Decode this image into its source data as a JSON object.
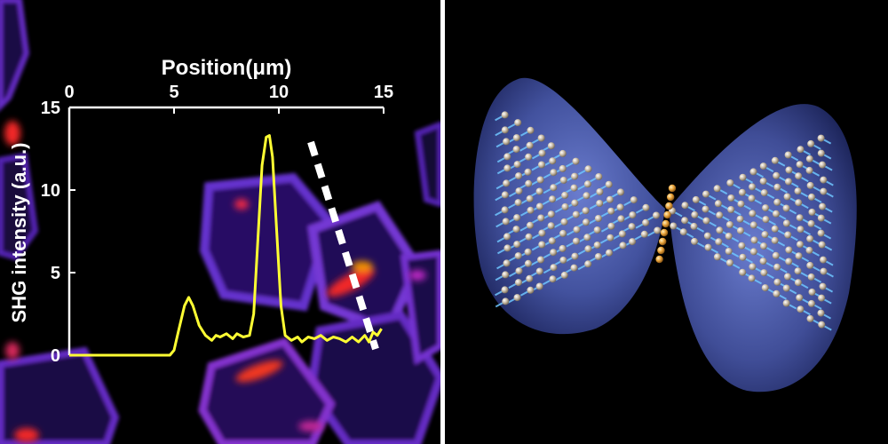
{
  "chart_data": {
    "type": "line",
    "title": "",
    "xlabel": "Position(μm)",
    "ylabel": "SHG intensity (a.u.)",
    "xlim": [
      0,
      15
    ],
    "ylim": [
      0,
      15
    ],
    "x_ticks": [
      0,
      5,
      10,
      15
    ],
    "y_ticks": [
      0,
      5,
      10,
      15
    ],
    "x_axis_position": "top",
    "grid": false,
    "series": [
      {
        "color": "#ffff33",
        "x": [
          0,
          4.8,
          5.0,
          5.2,
          5.5,
          5.7,
          5.9,
          6.2,
          6.5,
          6.8,
          7.0,
          7.2,
          7.5,
          7.8,
          8.0,
          8.3,
          8.6,
          8.8,
          9.0,
          9.2,
          9.4,
          9.55,
          9.7,
          9.9,
          10.1,
          10.3,
          10.6,
          10.9,
          11.1,
          11.4,
          11.7,
          12.0,
          12.3,
          12.6,
          12.9,
          13.2,
          13.5,
          13.8,
          14.1,
          14.3,
          14.5,
          14.7,
          14.9
        ],
        "y": [
          0,
          0,
          0.3,
          1.4,
          3.0,
          3.5,
          3.0,
          1.8,
          1.2,
          0.9,
          1.2,
          1.1,
          1.3,
          1.0,
          1.3,
          1.1,
          1.2,
          2.5,
          7.0,
          11.5,
          13.2,
          13.3,
          12.0,
          7.5,
          3.0,
          1.2,
          0.9,
          1.1,
          0.8,
          1.1,
          1.0,
          1.2,
          0.9,
          1.1,
          1.0,
          0.8,
          1.1,
          0.8,
          1.2,
          0.8,
          1.4,
          1.2,
          1.6
        ]
      }
    ]
  },
  "colors": {
    "background": "#000000",
    "line": "#ffff33",
    "axes": "#ffffff",
    "map_low": "#4b1fb8",
    "map_mid": "#9a2fd0",
    "map_high": "#ff2a2a",
    "model_lobe": "#4a5bb0",
    "atom_light": "#c9bca8",
    "bond_blue": "#6fc6ff",
    "atom_gold": "#e8a23a"
  },
  "icons": [
    "shg-intensity-map",
    "white-dashed-scan-line",
    "molecular-model-illustration"
  ]
}
